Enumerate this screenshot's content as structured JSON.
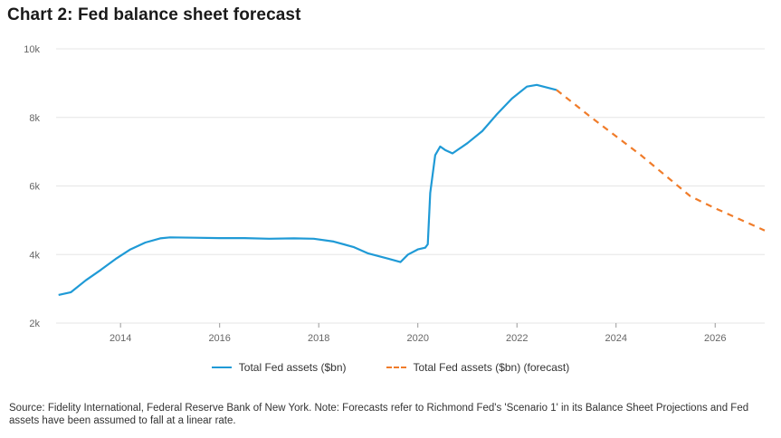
{
  "title": "Chart 2: Fed balance sheet forecast",
  "source": "Source: Fidelity International, Federal Reserve Bank of New York. Note: Forecasts refer to Richmond Fed's 'Scenario 1' in its Balance Sheet Projections and Fed assets have been assumed to fall at a linear rate.",
  "colors": {
    "actual": "#1f9ad6",
    "forecast": "#f07c2a",
    "grid": "#e6e6e6"
  },
  "chart_data": {
    "type": "line",
    "title": "Chart 2: Fed balance sheet forecast",
    "xlabel": "",
    "ylabel": "",
    "xlim": [
      2012.7,
      2027.0
    ],
    "ylim": [
      2000,
      10000
    ],
    "y_ticks": [
      {
        "value": 2000,
        "label": "2k"
      },
      {
        "value": 4000,
        "label": "4k"
      },
      {
        "value": 6000,
        "label": "6k"
      },
      {
        "value": 8000,
        "label": "8k"
      },
      {
        "value": 10000,
        "label": "10k"
      }
    ],
    "x_ticks": [
      {
        "value": 2014,
        "label": "2014"
      },
      {
        "value": 2016,
        "label": "2016"
      },
      {
        "value": 2018,
        "label": "2018"
      },
      {
        "value": 2020,
        "label": "2020"
      },
      {
        "value": 2022,
        "label": "2022"
      },
      {
        "value": 2024,
        "label": "2024"
      },
      {
        "value": 2026,
        "label": "2026"
      }
    ],
    "grid": "horizontal",
    "legend_position": "bottom",
    "series": [
      {
        "name": "Total Fed assets ($bn)",
        "style": "solid",
        "points": [
          [
            2012.75,
            2820
          ],
          [
            2013.0,
            2900
          ],
          [
            2013.3,
            3250
          ],
          [
            2013.6,
            3550
          ],
          [
            2013.9,
            3870
          ],
          [
            2014.2,
            4150
          ],
          [
            2014.5,
            4350
          ],
          [
            2014.8,
            4470
          ],
          [
            2015.0,
            4500
          ],
          [
            2015.5,
            4490
          ],
          [
            2016.0,
            4480
          ],
          [
            2016.5,
            4480
          ],
          [
            2017.0,
            4460
          ],
          [
            2017.5,
            4470
          ],
          [
            2017.9,
            4460
          ],
          [
            2018.3,
            4380
          ],
          [
            2018.7,
            4220
          ],
          [
            2019.0,
            4030
          ],
          [
            2019.4,
            3880
          ],
          [
            2019.65,
            3780
          ],
          [
            2019.8,
            4000
          ],
          [
            2020.0,
            4150
          ],
          [
            2020.15,
            4200
          ],
          [
            2020.2,
            4300
          ],
          [
            2020.25,
            5800
          ],
          [
            2020.35,
            6900
          ],
          [
            2020.45,
            7150
          ],
          [
            2020.55,
            7050
          ],
          [
            2020.7,
            6950
          ],
          [
            2021.0,
            7250
          ],
          [
            2021.3,
            7600
          ],
          [
            2021.6,
            8100
          ],
          [
            2021.9,
            8550
          ],
          [
            2022.2,
            8900
          ],
          [
            2022.4,
            8950
          ],
          [
            2022.8,
            8800
          ]
        ]
      },
      {
        "name": "Total Fed assets ($bn) (forecast)",
        "style": "dashed",
        "points": [
          [
            2022.8,
            8800
          ],
          [
            2023.5,
            8000
          ],
          [
            2024.5,
            6900
          ],
          [
            2025.5,
            5700
          ],
          [
            2026.0,
            5350
          ],
          [
            2027.0,
            4700
          ]
        ]
      }
    ]
  }
}
